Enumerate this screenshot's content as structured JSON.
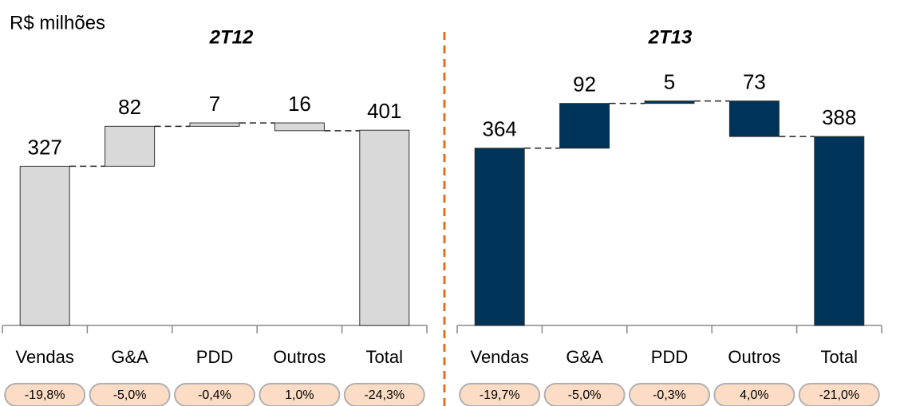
{
  "unit_label": "R$ milhões",
  "chart_data": [
    {
      "type": "waterfall",
      "title": "2T12",
      "categories": [
        "Vendas",
        "G&A",
        "PDD",
        "Outros",
        "Total"
      ],
      "values": [
        327,
        82,
        7,
        -16,
        401
      ],
      "value_labels": [
        "327",
        "82",
        "7",
        "16",
        "401"
      ],
      "margins": [
        "-19,8%",
        "-5,0%",
        "-0,4%",
        "1,0%",
        "-24,3%"
      ],
      "color": "#d9d9d9",
      "ylim": [
        0,
        480
      ]
    },
    {
      "type": "waterfall",
      "title": "2T13",
      "categories": [
        "Vendas",
        "G&A",
        "PDD",
        "Outros",
        "Total"
      ],
      "values": [
        364,
        92,
        5,
        -73,
        388
      ],
      "value_labels": [
        "364",
        "92",
        "5",
        "73",
        "388"
      ],
      "margins": [
        "-19,7%",
        "-5,0%",
        "-0,3%",
        "4,0%",
        "-21,0%"
      ],
      "color": "#003358",
      "ylim": [
        0,
        480
      ]
    }
  ]
}
